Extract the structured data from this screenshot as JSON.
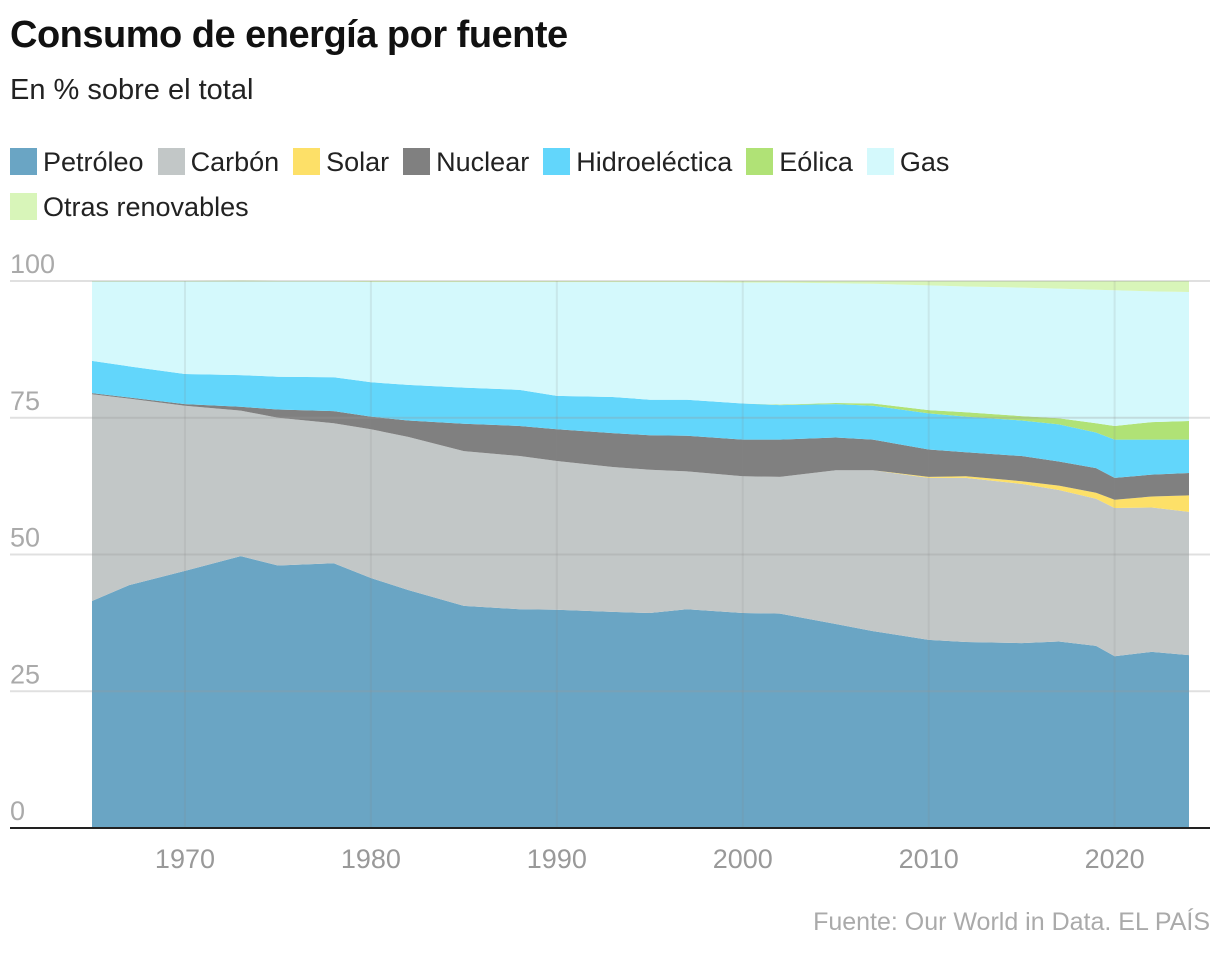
{
  "title": "Consumo de energía por fuente",
  "subtitle": "En % sobre el total",
  "source": "Fuente: Our World in Data. EL PAÍS",
  "chart_data": {
    "type": "area",
    "stacked": true,
    "title": "Consumo de energía por fuente",
    "subtitle": "En % sobre el total",
    "xlabel": "",
    "ylabel": "",
    "ylim": [
      0,
      100
    ],
    "xlim": [
      1965,
      2024
    ],
    "yticks": [
      "0",
      "25",
      "50",
      "75",
      "100"
    ],
    "xticks": [
      "1970",
      "1980",
      "1990",
      "2000",
      "2010",
      "2020"
    ],
    "grid": true,
    "legend_position": "top",
    "x": [
      1965,
      1967,
      1970,
      1973,
      1975,
      1978,
      1980,
      1982,
      1985,
      1988,
      1990,
      1993,
      1995,
      1997,
      2000,
      2002,
      2005,
      2007,
      2010,
      2012,
      2015,
      2017,
      2019,
      2020,
      2022,
      2024
    ],
    "series": [
      {
        "name": "Petróleo",
        "color": "#6aa5c4",
        "values": [
          41.5,
          44.4,
          47.0,
          49.7,
          48.0,
          48.4,
          45.7,
          43.5,
          40.6,
          40.0,
          39.9,
          39.5,
          39.3,
          40.0,
          39.3,
          39.2,
          37.3,
          36.0,
          34.4,
          34.0,
          33.8,
          34.1,
          33.3,
          31.4,
          32.2,
          31.6
        ]
      },
      {
        "name": "Carbón",
        "color": "#c2c7c7",
        "values": [
          37.8,
          34.1,
          30.2,
          26.6,
          27.0,
          25.6,
          27.2,
          28.0,
          28.3,
          28.0,
          27.2,
          26.5,
          26.2,
          25.2,
          25.0,
          25.0,
          28.1,
          29.4,
          29.6,
          30.0,
          29.1,
          27.7,
          26.9,
          27.1,
          26.4,
          26.2
        ]
      },
      {
        "name": "Solar",
        "color": "#fde068",
        "values": [
          0,
          0,
          0,
          0,
          0,
          0,
          0,
          0,
          0,
          0,
          0,
          0,
          0,
          0,
          0,
          0,
          0,
          0,
          0.2,
          0.3,
          0.5,
          0.8,
          1.1,
          1.5,
          2.0,
          3.0
        ]
      },
      {
        "name": "Nuclear",
        "color": "#808080",
        "values": [
          0.2,
          0.2,
          0.3,
          0.7,
          1.5,
          2.2,
          2.3,
          3.0,
          5.0,
          5.5,
          5.8,
          6.2,
          6.3,
          6.5,
          6.7,
          6.8,
          6.0,
          5.6,
          5.0,
          4.4,
          4.6,
          4.4,
          4.5,
          4.0,
          4.0,
          4.1
        ]
      },
      {
        "name": "Hidroeléctica",
        "color": "#62d6fb",
        "values": [
          5.9,
          5.7,
          5.5,
          5.8,
          6.0,
          6.2,
          6.3,
          6.5,
          6.6,
          6.6,
          6.1,
          6.6,
          6.5,
          6.6,
          6.6,
          6.3,
          6.1,
          6.2,
          6.6,
          6.5,
          6.5,
          6.8,
          6.5,
          7.0,
          6.4,
          6.1
        ]
      },
      {
        "name": "Eólica",
        "color": "#b0e276",
        "values": [
          0,
          0,
          0,
          0,
          0,
          0,
          0,
          0,
          0,
          0,
          0,
          0,
          0,
          0,
          0,
          0.1,
          0.2,
          0.4,
          0.6,
          0.8,
          0.8,
          1.1,
          1.7,
          2.5,
          3.2,
          3.4
        ]
      },
      {
        "name": "Gas",
        "color": "#d4f9fc",
        "values": [
          14.5,
          15.5,
          16.9,
          17.1,
          17.4,
          17.5,
          18.3,
          18.8,
          19.3,
          19.7,
          20.8,
          21.0,
          21.5,
          21.5,
          22.1,
          22.3,
          21.9,
          21.9,
          22.8,
          23.0,
          23.5,
          23.7,
          24.4,
          24.8,
          23.9,
          23.6
        ]
      },
      {
        "name": "Otras renovables",
        "color": "#d8f5b9",
        "values": [
          0.1,
          0.1,
          0.1,
          0.2,
          0.1,
          0.1,
          0.2,
          0.2,
          0.2,
          0.2,
          0.2,
          0.2,
          0.2,
          0.2,
          0.3,
          0.3,
          0.4,
          0.5,
          0.8,
          1.0,
          1.2,
          1.4,
          1.6,
          1.7,
          1.9,
          2.0
        ]
      }
    ]
  }
}
